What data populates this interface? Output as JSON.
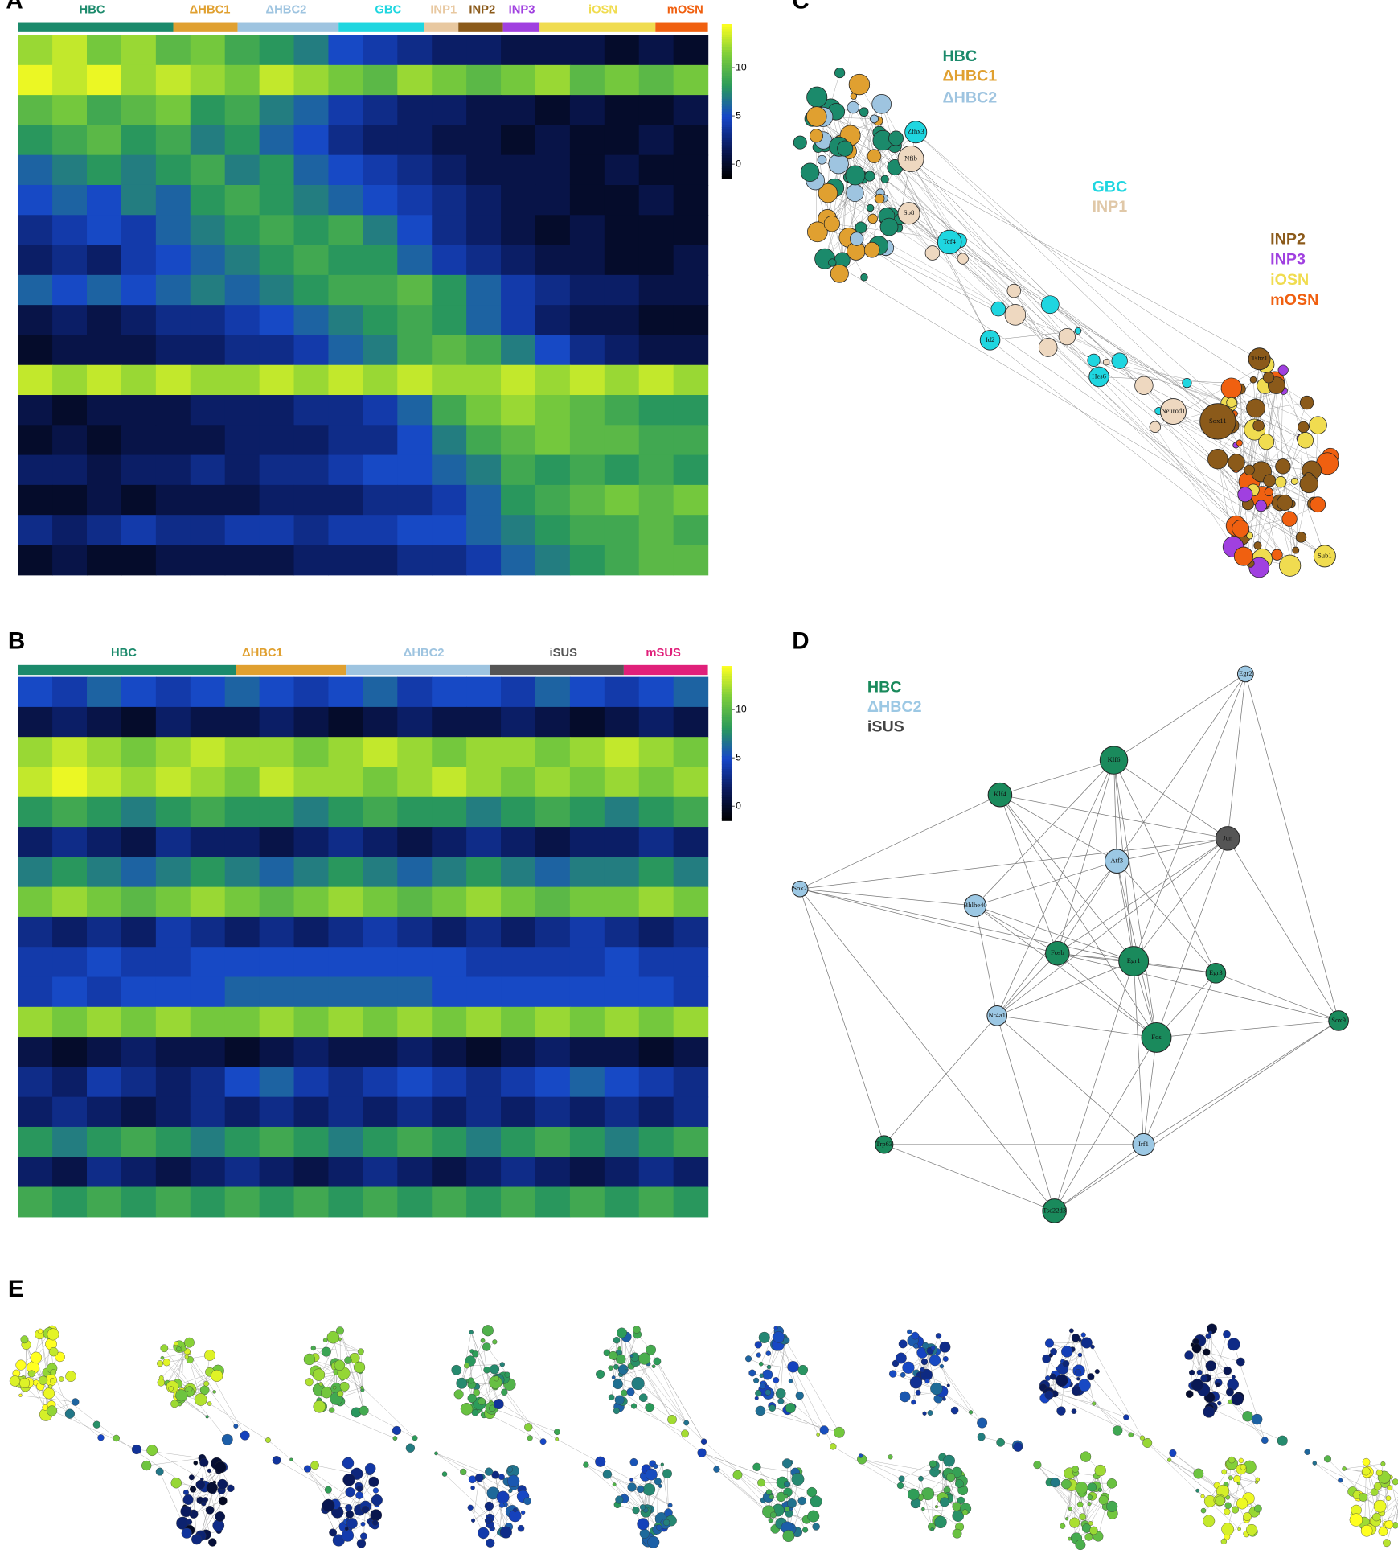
{
  "panels": {
    "a": "A",
    "b": "B",
    "c": "C",
    "d": "D",
    "e": "E"
  },
  "heatmap_a": {
    "clusters": [
      {
        "name": "HBC",
        "color": "#1b8a6b"
      },
      {
        "name": "ΔHBC1",
        "color": "#e0a030"
      },
      {
        "name": "ΔHBC2",
        "color": "#9ec4e0"
      },
      {
        "name": "GBC",
        "color": "#1fd6e0"
      },
      {
        "name": "INP1",
        "color": "#e8c8a0"
      },
      {
        "name": "INP2",
        "color": "#8b5a1a"
      },
      {
        "name": "INP3",
        "color": "#a040e0"
      },
      {
        "name": "iOSN",
        "color": "#f0dc50"
      },
      {
        "name": "mOSN",
        "color": "#f06010"
      }
    ],
    "colorscale": {
      "lim": [
        -1.5,
        14.5
      ],
      "ticks": [
        0,
        5,
        10
      ],
      "colors": [
        "#000000",
        "#0a1a5c",
        "#1646c8",
        "#2a9a5a",
        "#7ccd3a",
        "#ffff20"
      ]
    },
    "values": [
      [
        12,
        13,
        11,
        12,
        10,
        11,
        9,
        8,
        7,
        5,
        4,
        3,
        2,
        2,
        1,
        1,
        1,
        0,
        1,
        0
      ],
      [
        14,
        13,
        14,
        12,
        13,
        12,
        11,
        13,
        12,
        11,
        10,
        12,
        11,
        10,
        11,
        12,
        10,
        11,
        10,
        11
      ],
      [
        10,
        11,
        9,
        10,
        11,
        8,
        9,
        7,
        6,
        4,
        3,
        2,
        2,
        1,
        1,
        0,
        1,
        0,
        0,
        1
      ],
      [
        8,
        9,
        10,
        8,
        9,
        7,
        8,
        6,
        5,
        3,
        2,
        2,
        1,
        1,
        0,
        1,
        0,
        0,
        1,
        0
      ],
      [
        6,
        7,
        8,
        7,
        8,
        9,
        7,
        8,
        6,
        5,
        4,
        3,
        2,
        1,
        1,
        1,
        0,
        1,
        0,
        0
      ],
      [
        5,
        6,
        5,
        7,
        6,
        8,
        9,
        8,
        7,
        6,
        5,
        4,
        3,
        2,
        1,
        1,
        0,
        0,
        1,
        0
      ],
      [
        3,
        4,
        5,
        4,
        6,
        7,
        8,
        9,
        8,
        9,
        7,
        5,
        3,
        2,
        1,
        0,
        1,
        0,
        0,
        0
      ],
      [
        2,
        3,
        2,
        4,
        5,
        6,
        7,
        8,
        9,
        8,
        8,
        6,
        4,
        3,
        2,
        1,
        1,
        0,
        0,
        1
      ],
      [
        6,
        5,
        6,
        5,
        6,
        7,
        6,
        7,
        8,
        9,
        9,
        10,
        8,
        6,
        4,
        3,
        2,
        2,
        1,
        1
      ],
      [
        1,
        2,
        1,
        2,
        3,
        3,
        4,
        5,
        6,
        7,
        8,
        9,
        8,
        6,
        4,
        2,
        1,
        1,
        0,
        0
      ],
      [
        0,
        1,
        1,
        1,
        2,
        2,
        3,
        3,
        4,
        6,
        7,
        9,
        10,
        9,
        7,
        5,
        3,
        2,
        1,
        1
      ],
      [
        13,
        12,
        13,
        12,
        13,
        12,
        12,
        13,
        12,
        13,
        12,
        13,
        12,
        12,
        13,
        12,
        13,
        12,
        13,
        12
      ],
      [
        1,
        0,
        1,
        1,
        1,
        2,
        2,
        2,
        3,
        3,
        4,
        6,
        9,
        11,
        12,
        11,
        10,
        9,
        8,
        8
      ],
      [
        0,
        1,
        0,
        1,
        1,
        1,
        2,
        2,
        2,
        3,
        3,
        5,
        7,
        9,
        10,
        11,
        10,
        10,
        9,
        9
      ],
      [
        2,
        2,
        1,
        2,
        2,
        3,
        2,
        3,
        3,
        4,
        5,
        5,
        6,
        7,
        9,
        8,
        9,
        8,
        9,
        8
      ],
      [
        0,
        0,
        1,
        0,
        1,
        1,
        1,
        2,
        2,
        2,
        3,
        3,
        4,
        6,
        8,
        9,
        10,
        11,
        10,
        11
      ],
      [
        3,
        2,
        3,
        4,
        3,
        3,
        4,
        4,
        3,
        4,
        4,
        5,
        5,
        6,
        7,
        8,
        9,
        9,
        10,
        9
      ],
      [
        0,
        1,
        0,
        0,
        1,
        1,
        1,
        1,
        2,
        2,
        2,
        3,
        3,
        4,
        6,
        7,
        8,
        9,
        10,
        10
      ]
    ]
  },
  "heatmap_b": {
    "clusters": [
      {
        "name": "HBC",
        "color": "#1b8a6b"
      },
      {
        "name": "ΔHBC1",
        "color": "#e0a030"
      },
      {
        "name": "ΔHBC2",
        "color": "#9ec4e0"
      },
      {
        "name": "iSUS",
        "color": "#555555"
      },
      {
        "name": "mSUS",
        "color": "#e0207a"
      }
    ],
    "colorscale": {
      "lim": [
        -1.5,
        14.5
      ],
      "ticks": [
        0,
        5,
        10
      ],
      "colors": [
        "#000000",
        "#0a1a5c",
        "#1646c8",
        "#2a9a5a",
        "#7ccd3a",
        "#ffff20"
      ]
    },
    "values": [
      [
        5,
        4,
        6,
        5,
        4,
        5,
        6,
        5,
        4,
        5,
        6,
        4,
        5,
        5,
        4,
        6,
        5,
        4,
        5,
        6
      ],
      [
        1,
        2,
        1,
        0,
        2,
        1,
        1,
        2,
        1,
        0,
        1,
        2,
        1,
        1,
        2,
        1,
        0,
        1,
        2,
        1
      ],
      [
        12,
        13,
        12,
        11,
        12,
        13,
        12,
        12,
        11,
        12,
        13,
        12,
        11,
        12,
        12,
        11,
        12,
        13,
        12,
        11
      ],
      [
        13,
        14,
        13,
        12,
        13,
        12,
        11,
        13,
        12,
        12,
        11,
        12,
        13,
        12,
        11,
        12,
        11,
        12,
        11,
        12
      ],
      [
        8,
        9,
        8,
        7,
        8,
        9,
        8,
        8,
        7,
        8,
        9,
        8,
        8,
        7,
        8,
        9,
        8,
        7,
        8,
        9
      ],
      [
        2,
        3,
        2,
        1,
        3,
        2,
        2,
        1,
        2,
        3,
        2,
        1,
        2,
        3,
        2,
        1,
        2,
        2,
        3,
        2
      ],
      [
        7,
        8,
        7,
        6,
        7,
        8,
        7,
        6,
        7,
        8,
        7,
        6,
        7,
        8,
        7,
        6,
        7,
        7,
        8,
        7
      ],
      [
        11,
        12,
        11,
        10,
        11,
        12,
        11,
        10,
        11,
        12,
        11,
        10,
        11,
        12,
        11,
        10,
        11,
        11,
        12,
        11
      ],
      [
        3,
        2,
        3,
        2,
        4,
        3,
        2,
        3,
        2,
        3,
        4,
        3,
        2,
        3,
        2,
        3,
        4,
        3,
        2,
        3
      ],
      [
        4,
        4,
        5,
        4,
        4,
        5,
        5,
        5,
        5,
        5,
        5,
        5,
        5,
        4,
        4,
        4,
        4,
        5,
        4,
        4
      ],
      [
        4,
        5,
        4,
        5,
        5,
        5,
        6,
        6,
        6,
        6,
        6,
        6,
        5,
        5,
        5,
        5,
        5,
        5,
        5,
        4
      ],
      [
        12,
        11,
        12,
        11,
        12,
        11,
        11,
        12,
        11,
        12,
        11,
        12,
        11,
        12,
        11,
        12,
        11,
        12,
        11,
        12
      ],
      [
        1,
        0,
        1,
        2,
        1,
        1,
        0,
        1,
        2,
        1,
        1,
        2,
        1,
        0,
        1,
        2,
        1,
        1,
        0,
        1
      ],
      [
        3,
        2,
        4,
        3,
        2,
        3,
        5,
        6,
        4,
        3,
        4,
        5,
        4,
        3,
        4,
        5,
        6,
        5,
        4,
        3
      ],
      [
        2,
        3,
        2,
        1,
        2,
        3,
        2,
        3,
        2,
        3,
        2,
        3,
        2,
        3,
        2,
        3,
        2,
        3,
        2,
        3
      ],
      [
        8,
        7,
        8,
        9,
        8,
        7,
        8,
        9,
        8,
        7,
        8,
        9,
        8,
        7,
        8,
        9,
        8,
        7,
        8,
        9
      ],
      [
        2,
        1,
        3,
        2,
        1,
        2,
        3,
        2,
        1,
        2,
        3,
        2,
        1,
        2,
        3,
        2,
        1,
        2,
        3,
        2
      ],
      [
        9,
        8,
        9,
        8,
        9,
        8,
        9,
        8,
        9,
        8,
        9,
        8,
        9,
        8,
        9,
        8,
        9,
        8,
        9,
        8
      ]
    ]
  },
  "network_c": {
    "legend": [
      {
        "name": "HBC",
        "color": "#1b8a6b"
      },
      {
        "name": "ΔHBC1",
        "color": "#e0a030"
      },
      {
        "name": "ΔHBC2",
        "color": "#9ec4e0"
      },
      {
        "name": "GBC",
        "color": "#1fd6e0"
      },
      {
        "name": "INP1",
        "color": "#e0c8a8"
      },
      {
        "name": "INP2",
        "color": "#8b5a1a"
      },
      {
        "name": "INP3",
        "color": "#a040e0"
      },
      {
        "name": "iOSN",
        "color": "#f0dc50"
      },
      {
        "name": "mOSN",
        "color": "#f06010"
      }
    ],
    "nodes": [
      {
        "label": "Zfhx3",
        "color": "#1fd6e0"
      },
      {
        "label": "Nfib",
        "color": "#eed8c0"
      },
      {
        "label": "Sp8",
        "color": "#eed8c0"
      },
      {
        "label": "Tcf4",
        "color": "#1fd6e0"
      },
      {
        "label": "Id2",
        "color": "#1fd6e0"
      },
      {
        "label": "Hes6",
        "color": "#1fd6e0"
      },
      {
        "label": "Neurod1",
        "color": "#eed8c0"
      },
      {
        "label": "Sox11",
        "color": "#8b5a1a"
      },
      {
        "label": "Tshz1",
        "color": "#8b5a1a"
      },
      {
        "label": "Sub1",
        "color": "#f0dc50"
      }
    ]
  },
  "network_d": {
    "legend": [
      {
        "name": "HBC",
        "color": "#1a8a5c"
      },
      {
        "name": "ΔHBC2",
        "color": "#9cc8e4"
      },
      {
        "name": "iSUS",
        "color": "#444444"
      }
    ],
    "nodes": [
      {
        "label": "Egr2",
        "color": "#9cc8e4"
      },
      {
        "label": "Klf6",
        "color": "#1a8a5c"
      },
      {
        "label": "Klf4",
        "color": "#1a8a5c"
      },
      {
        "label": "Jun",
        "color": "#555555"
      },
      {
        "label": "Atf3",
        "color": "#9cc8e4"
      },
      {
        "label": "Sox2",
        "color": "#9cc8e4"
      },
      {
        "label": "Bhlhe40",
        "color": "#9cc8e4"
      },
      {
        "label": "Fosb",
        "color": "#1a8a5c"
      },
      {
        "label": "Egr1",
        "color": "#1a8a5c"
      },
      {
        "label": "Egr3",
        "color": "#1a8a5c"
      },
      {
        "label": "Nr4a1",
        "color": "#9cc8e4"
      },
      {
        "label": "Fos",
        "color": "#1a8a5c"
      },
      {
        "label": "Sox9",
        "color": "#1a8a5c"
      },
      {
        "label": "Irf1",
        "color": "#9cc8e4"
      },
      {
        "label": "Trp63",
        "color": "#1a8a5c"
      },
      {
        "label": "Tsc22d3",
        "color": "#1a8a5c"
      }
    ]
  }
}
